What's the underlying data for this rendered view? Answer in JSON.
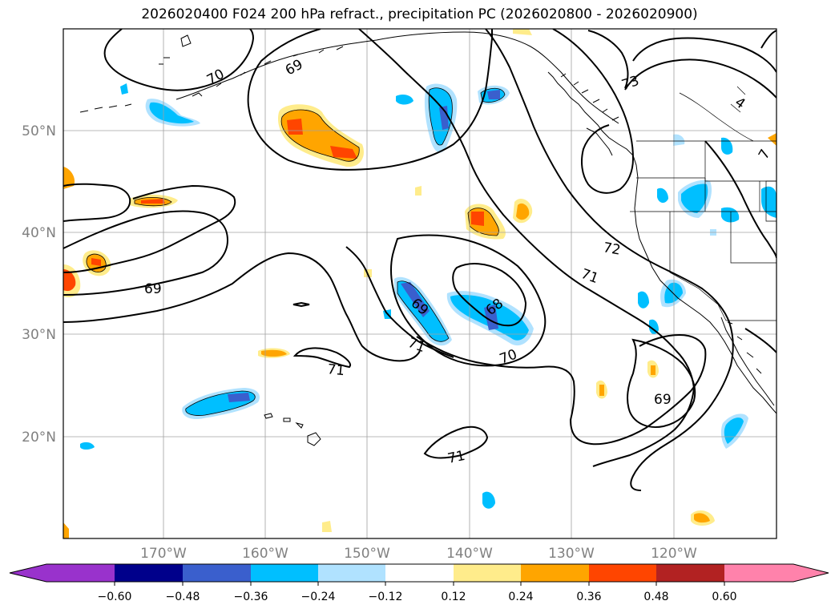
{
  "title": "2026020400 F024 200 hPa refract., precipitation PC (2026020800 - 2026020900)",
  "latitude_labels": [
    "50°N",
    "40°N",
    "30°N",
    "20°N"
  ],
  "longitude_labels": [
    "170°W",
    "160°W",
    "150°W",
    "140°W",
    "130°W",
    "120°W"
  ],
  "contour_labels": [
    "70",
    "69",
    "73",
    "4",
    "7",
    "72",
    "71",
    "69",
    "68",
    "69",
    "71",
    "70",
    "71",
    "69",
    "71"
  ],
  "colorbar": {
    "tick_labels": [
      "−0.60",
      "−0.48",
      "−0.36",
      "−0.24",
      "−0.12",
      "0.12",
      "0.24",
      "0.36",
      "0.48",
      "0.60"
    ],
    "colors": [
      "#9932CC",
      "#00008B",
      "#3A5FCD",
      "#00BFFF",
      "#B0E2FF",
      "#FFFFFF",
      "#FFEC8B",
      "#FFA500",
      "#FF4500",
      "#B22222",
      "#FF82AB"
    ]
  },
  "fill_colors": {
    "light_blue": "#B0E2FF",
    "blue": "#00BFFF",
    "royal": "#3A5FCD",
    "pale_yellow": "#FFEC8B",
    "orange": "#FFA500",
    "red_orange": "#FF4500"
  }
}
